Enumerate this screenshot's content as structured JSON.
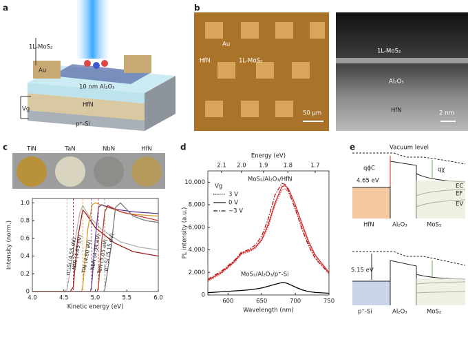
{
  "panel_labels": [
    "a",
    "b",
    "c",
    "d",
    "e"
  ],
  "panel_a": {
    "mos2": "1L-MoS₂",
    "au": "Au",
    "oxide": "10 nm Al₂O₃",
    "metal": "HfN",
    "substrate": "p⁺-Si",
    "gate": "Vg"
  },
  "panel_b": {
    "au": "Au",
    "hfn": "HfN",
    "mos2": "1L-MoS₂",
    "scale_left": "50 µm",
    "tem_mos2": "1L-MoS₂",
    "tem_oxide": "Al₂O₃",
    "tem_hfn": "HfN",
    "scale_right": "2 nm"
  },
  "panel_c_samples": [
    "TiN",
    "TaN",
    "NbN",
    "HfN"
  ],
  "chart_data": [
    {
      "type": "line",
      "xlabel": "Kinetic energy (eV)",
      "ylabel": "Intensity (norm.)",
      "xlim": [
        4.0,
        6.0
      ],
      "ylim": [
        0,
        1.05
      ],
      "xticks": [
        {
          "value": 4,
          "label": "4.0"
        },
        {
          "value": 4.5,
          "label": "4.5"
        },
        {
          "value": 5,
          "label": "5.0"
        },
        {
          "value": 5.5,
          "label": "5.5"
        },
        {
          "value": 6,
          "label": "6.0"
        }
      ],
      "yticks": [
        0,
        0.2,
        0.4,
        0.6,
        0.8,
        {
          "value": 1,
          "label": "1.0"
        }
      ],
      "series": [
        {
          "name": "n⁺-Si (4.55 eV)",
          "color": "#b0b0b0",
          "work_function": 4.55,
          "x": [
            4.0,
            4.5,
            4.55,
            4.65,
            4.75,
            4.8,
            4.9,
            5.1,
            5.4,
            5.7,
            6.0
          ],
          "values": [
            0,
            0,
            0.02,
            0.45,
            0.88,
            0.97,
            0.85,
            0.7,
            0.56,
            0.5,
            0.47
          ]
        },
        {
          "name": "HfN (4.65 eV)",
          "color": "#a01c1c",
          "work_function": 4.65,
          "x": [
            4.0,
            4.6,
            4.65,
            4.72,
            4.8,
            4.85,
            5.0,
            5.3,
            5.6,
            6.0
          ],
          "values": [
            0,
            0,
            0.05,
            0.6,
            0.92,
            0.88,
            0.72,
            0.55,
            0.45,
            0.4
          ]
        },
        {
          "name": "TiN (4.80 eV)",
          "color": "#d59a2a",
          "work_function": 4.8,
          "x": [
            4.0,
            4.78,
            4.8,
            4.88,
            4.95,
            5.0,
            5.2,
            5.5,
            5.8,
            6.0
          ],
          "values": [
            0,
            0,
            0.05,
            0.7,
            0.98,
            1.0,
            0.95,
            0.88,
            0.86,
            0.85
          ]
        },
        {
          "name": "NbN (4.94 eV)",
          "color": "#6a3d9a",
          "work_function": 4.94,
          "x": [
            4.0,
            4.92,
            4.94,
            5.0,
            5.05,
            5.1,
            5.3,
            5.6,
            6.0
          ],
          "values": [
            0,
            0,
            0.05,
            0.6,
            0.95,
            0.98,
            0.93,
            0.9,
            0.88
          ]
        },
        {
          "name": "TaN (5.05 eV)",
          "color": "#c0392b",
          "work_function": 5.05,
          "x": [
            4.0,
            5.03,
            5.05,
            5.1,
            5.15,
            5.2,
            5.4,
            5.7,
            6.0
          ],
          "values": [
            0,
            0,
            0.05,
            0.55,
            0.9,
            0.97,
            0.9,
            0.85,
            0.8
          ]
        },
        {
          "name": "p⁺-Si (5.15 eV)",
          "color": "#7a7a7a",
          "work_function": 5.15,
          "x": [
            4.0,
            5.13,
            5.15,
            5.25,
            5.32,
            5.4,
            5.6,
            5.8,
            6.0
          ],
          "values": [
            0,
            0,
            0.02,
            0.5,
            0.95,
            1.0,
            0.85,
            0.8,
            0.78
          ]
        }
      ]
    },
    {
      "type": "line",
      "xlabel": "Wavelength (nm)",
      "ylabel": "PL intensity (a.u.)",
      "x2label": "Energy (eV)",
      "xlim": [
        570,
        750
      ],
      "ylim": [
        0,
        11000
      ],
      "xticks": [
        600,
        650,
        700,
        750
      ],
      "x2ticks": [
        2.1,
        {
          "value": 2,
          "label": "2.0"
        },
        1.9,
        1.8,
        1.7
      ],
      "yticks": [
        0,
        {
          "value": 2000,
          "label": "2,000"
        },
        {
          "value": 4000,
          "label": "4,000"
        },
        {
          "value": 6000,
          "label": "6,000"
        },
        {
          "value": 8000,
          "label": "8,000"
        },
        {
          "value": 10000,
          "label": "10,000"
        }
      ],
      "legend_title": "Vg",
      "group_label": "MoS₂/Al₂O₃/HfN",
      "group_color": "#d62728",
      "x": [
        570,
        590,
        610,
        620,
        630,
        640,
        650,
        660,
        670,
        680,
        685,
        690,
        700,
        710,
        720,
        730,
        750
      ],
      "series": [
        {
          "name": "3 V",
          "color": "#e04040",
          "dash": "dotted",
          "values": [
            1200,
            1900,
            2900,
            3600,
            3800,
            4100,
            4800,
            6100,
            8000,
            9300,
            9400,
            9100,
            7700,
            6000,
            4500,
            3300,
            1900
          ]
        },
        {
          "name": "0 V",
          "color": "#d62728",
          "dash": "solid",
          "values": [
            1300,
            2000,
            3000,
            3700,
            3900,
            4200,
            4900,
            6300,
            8200,
            9600,
            9700,
            9400,
            8000,
            6300,
            4700,
            3500,
            2000
          ]
        },
        {
          "name": "−3 V",
          "color": "#b01818",
          "dash": "dashdot",
          "values": [
            1400,
            2100,
            3100,
            3800,
            4000,
            4400,
            5200,
            6800,
            8900,
            9900,
            9800,
            9200,
            7600,
            5800,
            4300,
            3200,
            1900
          ]
        },
        {
          "name": "MoS₂/Al₂O₃/p⁺-Si",
          "color": "#000000",
          "dash": "solid",
          "legend": false,
          "values": [
            200,
            280,
            360,
            400,
            450,
            520,
            620,
            780,
            950,
            1100,
            1080,
            980,
            700,
            450,
            300,
            220,
            150
          ]
        }
      ]
    }
  ],
  "panel_e": {
    "vacuum": "Vacuum level",
    "phi": "qϕC",
    "top_barrier": "4.65 eV",
    "chi": "qχ",
    "ec": "EC",
    "ef": "EF",
    "ev": "EV",
    "top_metal": "HfN",
    "top_oxide": "Al₂O₃",
    "top_semi": "MoS₂",
    "bottom_barrier": "5.15 eV",
    "bottom_metal": "p⁺-Si",
    "bottom_oxide": "Al₂O₃",
    "bottom_semi": "MoS₂"
  }
}
